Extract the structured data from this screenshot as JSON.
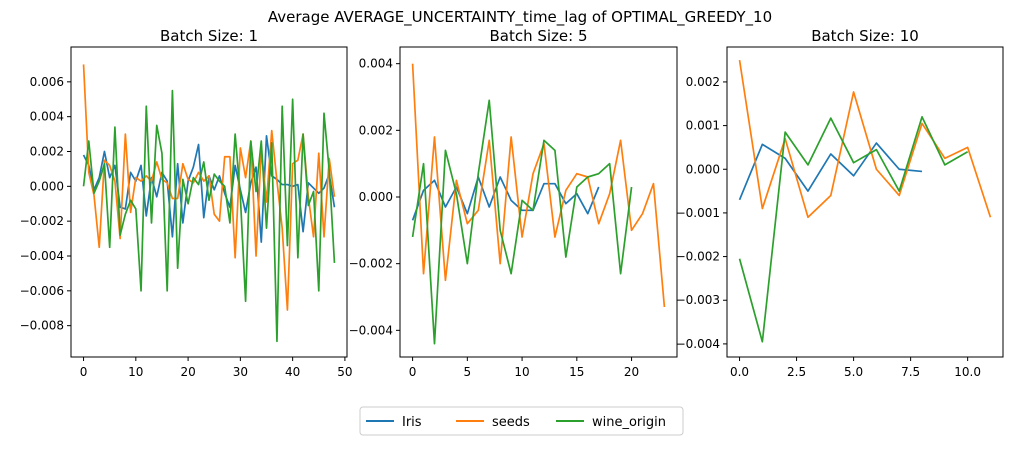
{
  "figure": {
    "title": "Average AVERAGE_UNCERTAINTY_time_lag of OPTIMAL_GREEDY_10"
  },
  "legend": {
    "placement": "bottom-center",
    "entries": [
      "Iris",
      "seeds",
      "wine_origin"
    ]
  },
  "colors": {
    "Iris": "#1f77b4",
    "seeds": "#ff7f0e",
    "wine_origin": "#2ca02c"
  },
  "chart_data": [
    {
      "type": "line",
      "title": "Batch Size: 1",
      "xlim": [
        -2.4,
        50.4
      ],
      "ylim": [
        -0.0098,
        0.008
      ],
      "xticks": [
        0,
        10,
        20,
        30,
        40,
        50
      ],
      "xtick_labels": [
        "0",
        "10",
        "20",
        "30",
        "40",
        "50"
      ],
      "yticks": [
        -0.008,
        -0.006,
        -0.004,
        -0.002,
        0.0,
        0.002,
        0.004,
        0.006
      ],
      "ytick_labels": [
        "−0.008",
        "−0.006",
        "−0.004",
        "−0.002",
        "0.000",
        "0.002",
        "0.004",
        "0.006"
      ],
      "series": [
        {
          "name": "Iris",
          "x": [
            0,
            1,
            2,
            3,
            4,
            5,
            6,
            7,
            8,
            9,
            10,
            11,
            12,
            13,
            14,
            15,
            16,
            17,
            18,
            19,
            20,
            21,
            22,
            23,
            24,
            25,
            26,
            27,
            28,
            29,
            30,
            31,
            32,
            33,
            34,
            35,
            36,
            37,
            38,
            39,
            40,
            41,
            42,
            43,
            44,
            45,
            46,
            47,
            48
          ],
          "values": [
            0.0018,
            0.0012,
            -0.0002,
            0.0005,
            0.002,
            0.0005,
            0.0012,
            -0.0012,
            -0.0013,
            0.0008,
            0.0003,
            0.0012,
            -0.0017,
            0.0005,
            -0.0006,
            0.0008,
            0.0003,
            -0.0029,
            0.0013,
            -0.0021,
            0.0003,
            0.0011,
            0.0024,
            -0.0018,
            0.0006,
            -0.0002,
            0.0006,
            -0.0004,
            -0.0012,
            0.0012,
            -0.0002,
            -0.0015,
            0.0002,
            0.0011,
            -0.0032,
            0.0029,
            0.0006,
            0.0004,
            0.0001,
            0.0001,
            0.0,
            0.0001,
            -0.0026,
            0.0002,
            -0.0001,
            -0.0004,
            -0.0001,
            0.0007,
            -0.0012
          ]
        },
        {
          "name": "seeds",
          "x": [
            0,
            1,
            2,
            3,
            4,
            5,
            6,
            7,
            8,
            9,
            10,
            11,
            12,
            13,
            14,
            15,
            16,
            17,
            18,
            19,
            20,
            21,
            22,
            23,
            24,
            25,
            26,
            27,
            28,
            29,
            30,
            31,
            32,
            33,
            34,
            35,
            36,
            37,
            38,
            39,
            40,
            41,
            42,
            43,
            44,
            45,
            46,
            47,
            48
          ],
          "values": [
            0.007,
            0.0008,
            -0.0005,
            -0.0035,
            0.0015,
            0.0012,
            0.0003,
            -0.003,
            0.003,
            -0.0015,
            0.0005,
            0.0003,
            0.0006,
            0.0003,
            0.0014,
            0.0004,
            0.0002,
            -0.0007,
            -0.0007,
            0.0013,
            0.0004,
            0.0002,
            0.0008,
            0.0003,
            0.0006,
            -0.0016,
            -0.002,
            0.0017,
            0.0017,
            -0.0041,
            0.0022,
            0.0005,
            0.0026,
            -0.004,
            0.0021,
            -0.0009,
            0.0032,
            0.0003,
            -0.0024,
            -0.0071,
            0.0013,
            0.0015,
            0.003,
            -0.0006,
            -0.0029,
            0.0019,
            -0.0029,
            0.0016,
            -0.0006
          ]
        },
        {
          "name": "wine_origin",
          "x": [
            0,
            1,
            2,
            3,
            4,
            5,
            6,
            7,
            8,
            9,
            10,
            11,
            12,
            13,
            14,
            15,
            16,
            17,
            18,
            19,
            20,
            21,
            22,
            23,
            24,
            25,
            26,
            27,
            28,
            29,
            30,
            31,
            32,
            33,
            34,
            35,
            36,
            37,
            38,
            39,
            40,
            41,
            42,
            43,
            44,
            45,
            46,
            47,
            48
          ],
          "values": [
            0.0,
            0.0026,
            -0.0004,
            0.0003,
            0.0013,
            -0.0035,
            0.0034,
            -0.0028,
            -0.0016,
            -0.0008,
            -0.0013,
            -0.006,
            0.0046,
            -0.0021,
            0.0035,
            0.0019,
            -0.006,
            0.0055,
            -0.0047,
            0.0004,
            -0.001,
            0.0005,
            0.0001,
            0.0014,
            -0.0008,
            0.0007,
            0.0003,
            0.0,
            -0.0021,
            0.003,
            -0.0006,
            -0.0066,
            0.0026,
            -0.0003,
            0.0026,
            -0.0024,
            0.0025,
            -0.0089,
            0.0046,
            -0.0034,
            0.005,
            -0.0041,
            0.003,
            -0.0011,
            -0.0003,
            -0.006,
            0.0042,
            0.0009,
            -0.0044
          ]
        }
      ]
    },
    {
      "type": "line",
      "title": "Batch Size: 5",
      "xlim": [
        -1.15,
        24.15
      ],
      "ylim": [
        -0.0048,
        0.0045
      ],
      "xticks": [
        0,
        5,
        10,
        15,
        20
      ],
      "xtick_labels": [
        "0",
        "5",
        "10",
        "15",
        "20"
      ],
      "yticks": [
        -0.004,
        -0.002,
        0.0,
        0.002,
        0.004
      ],
      "ytick_labels": [
        "−0.004",
        "−0.002",
        "0.000",
        "0.002",
        "0.004"
      ],
      "series": [
        {
          "name": "Iris",
          "x": [
            0,
            1,
            2,
            3,
            4,
            5,
            6,
            7,
            8,
            9,
            10,
            11,
            12,
            13,
            14,
            15,
            16,
            17
          ],
          "values": [
            -0.0007,
            0.0002,
            0.0005,
            -0.0003,
            0.0003,
            -0.0005,
            0.0006,
            -0.0003,
            0.0006,
            -0.0001,
            -0.0004,
            -0.0004,
            0.0004,
            0.0004,
            -0.0002,
            0.0001,
            -0.0005,
            0.0003
          ]
        },
        {
          "name": "seeds",
          "x": [
            0,
            1,
            2,
            3,
            4,
            5,
            6,
            7,
            8,
            9,
            10,
            11,
            12,
            13,
            14,
            15,
            16,
            17,
            18,
            19,
            20,
            21,
            22,
            23
          ],
          "values": [
            0.004,
            -0.0023,
            0.0018,
            -0.0025,
            0.0005,
            -0.0008,
            -0.0004,
            0.0017,
            -0.002,
            0.0018,
            -0.0012,
            0.0007,
            0.0016,
            -0.0012,
            0.0002,
            0.0007,
            0.0006,
            -0.0008,
            0.0001,
            0.0017,
            -0.001,
            -0.0005,
            0.0004,
            -0.0033
          ]
        },
        {
          "name": "wine_origin",
          "x": [
            0,
            1,
            2,
            3,
            4,
            5,
            6,
            7,
            8,
            9,
            10,
            11,
            12,
            13,
            14,
            15,
            16,
            17,
            18,
            19,
            20
          ],
          "values": [
            -0.0012,
            0.001,
            -0.0044,
            0.0014,
            0.0001,
            -0.002,
            0.0007,
            0.0029,
            -0.001,
            -0.0023,
            -0.0001,
            -0.0004,
            0.0017,
            0.0014,
            -0.0018,
            0.0003,
            0.0006,
            0.0007,
            0.001,
            -0.0023,
            0.0003
          ]
        }
      ]
    },
    {
      "type": "line",
      "title": "Batch Size: 10",
      "xlim": [
        -0.55,
        11.55
      ],
      "ylim": [
        -0.0043,
        0.0028
      ],
      "xticks": [
        0,
        2.5,
        5,
        7.5,
        10
      ],
      "xtick_labels": [
        "0.0",
        "2.5",
        "5.0",
        "7.5",
        "10.0"
      ],
      "yticks": [
        -0.004,
        -0.003,
        -0.002,
        -0.001,
        0.0,
        0.001,
        0.002
      ],
      "ytick_labels": [
        "−0.004",
        "−0.003",
        "−0.002",
        "−0.001",
        "0.000",
        "0.001",
        "0.002"
      ],
      "series": [
        {
          "name": "Iris",
          "x": [
            0,
            1,
            2,
            3,
            4,
            5,
            6,
            7,
            8
          ],
          "values": [
            -0.0007,
            0.00057,
            0.00025,
            -0.0005,
            0.00035,
            -0.00015,
            0.0006,
            0.0,
            -5e-05
          ]
        },
        {
          "name": "seeds",
          "x": [
            0,
            1,
            2,
            3,
            4,
            5,
            6,
            7,
            8,
            9,
            10,
            11
          ],
          "values": [
            0.0025,
            -0.0009,
            0.0007,
            -0.0011,
            -0.0006,
            0.00177,
            0.0,
            -0.0006,
            0.00105,
            0.00025,
            0.0005,
            -0.0011
          ]
        },
        {
          "name": "wine_origin",
          "x": [
            0,
            1,
            2,
            3,
            4,
            5,
            6,
            7,
            8,
            9,
            10
          ],
          "values": [
            -0.00205,
            -0.00395,
            0.00085,
            0.0001,
            0.00117,
            0.00015,
            0.00045,
            -0.0005,
            0.0012,
            0.0001,
            0.0004
          ]
        }
      ]
    }
  ]
}
